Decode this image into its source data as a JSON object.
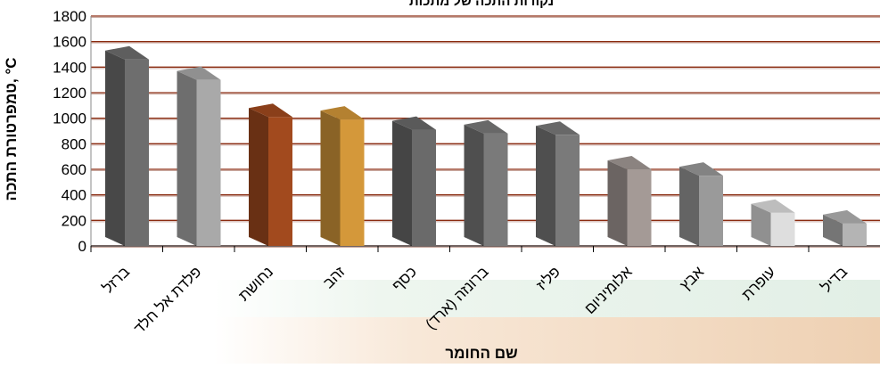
{
  "chart_data": {
    "type": "bar",
    "title": "נקודות התכה של מתכות",
    "xlabel": "שם החומר",
    "ylabel": "טמפרטורת התכה, °C",
    "ylim": [
      0,
      1800
    ],
    "yticks": [
      0,
      200,
      400,
      600,
      800,
      1000,
      1200,
      1400,
      1600,
      1800
    ],
    "grid": true,
    "categories": [
      "ברזל",
      "פלדת אל חלד",
      "נחושת",
      "זהב",
      "כסף",
      "ברונזה (ארד)",
      "פליז",
      "אלומיניום",
      "אבץ",
      "עופרת",
      "בדיל"
    ],
    "values": [
      1460,
      1300,
      1010,
      990,
      910,
      880,
      870,
      600,
      550,
      260,
      175
    ],
    "colors": [
      "#6e6e6e",
      "#a9a9a9",
      "#a24a1e",
      "#d4983a",
      "#6a6a6a",
      "#7a7a7a",
      "#7a7a7a",
      "#a49a96",
      "#9a9a9a",
      "#dedede",
      "#b4b4b4"
    ]
  }
}
